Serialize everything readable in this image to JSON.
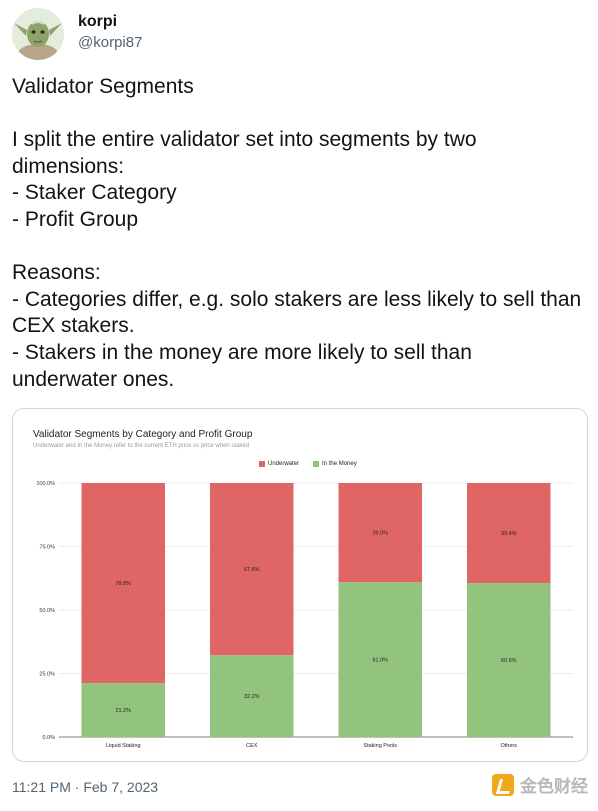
{
  "author": {
    "display_name": "korpi",
    "handle": "@korpi87",
    "avatar_icon": "yoda-avatar-icon"
  },
  "tweet": {
    "text": "Validator Segments\n\nI split the entire validator set into segments by two dimensions:\n- Staker Category\n- Profit Group\n\nReasons:\n- Categories differ, e.g. solo stakers are less likely to sell than CEX stakers.\n- Stakers in the money are more likely to sell than underwater ones.",
    "timestamp": "11:21 PM · Feb 7, 2023"
  },
  "watermark": {
    "text": "金色财经"
  },
  "chart_data": {
    "type": "bar",
    "stacked": true,
    "title": "Validator Segments by Category and Profit Group",
    "subtitle": "Underwater and In the Money refer to the current ETH price vs price when staked",
    "categories": [
      "Liquid Staking",
      "CEX",
      "Staking Pools",
      "Others"
    ],
    "series": [
      {
        "name": "In the Money",
        "color": "#93c47d",
        "values": [
          21.2,
          32.2,
          61.0,
          60.6
        ],
        "labels": [
          "21.2%",
          "32.2%",
          "61.0%",
          "60.6%"
        ]
      },
      {
        "name": "Underwater",
        "color": "#e06666",
        "values": [
          78.8,
          67.8,
          39.0,
          39.4
        ],
        "labels": [
          "78.8%",
          "67.8%",
          "39.0%",
          "39.4%"
        ]
      }
    ],
    "legend_order": [
      "Underwater",
      "In the Money"
    ],
    "legend_position": "top",
    "ylim": [
      0,
      100
    ],
    "yticks": [
      "0.0%",
      "25.0%",
      "50.0%",
      "75.0%",
      "100.0%"
    ],
    "ytick_values": [
      0,
      25,
      50,
      75,
      100
    ],
    "grid": true
  }
}
